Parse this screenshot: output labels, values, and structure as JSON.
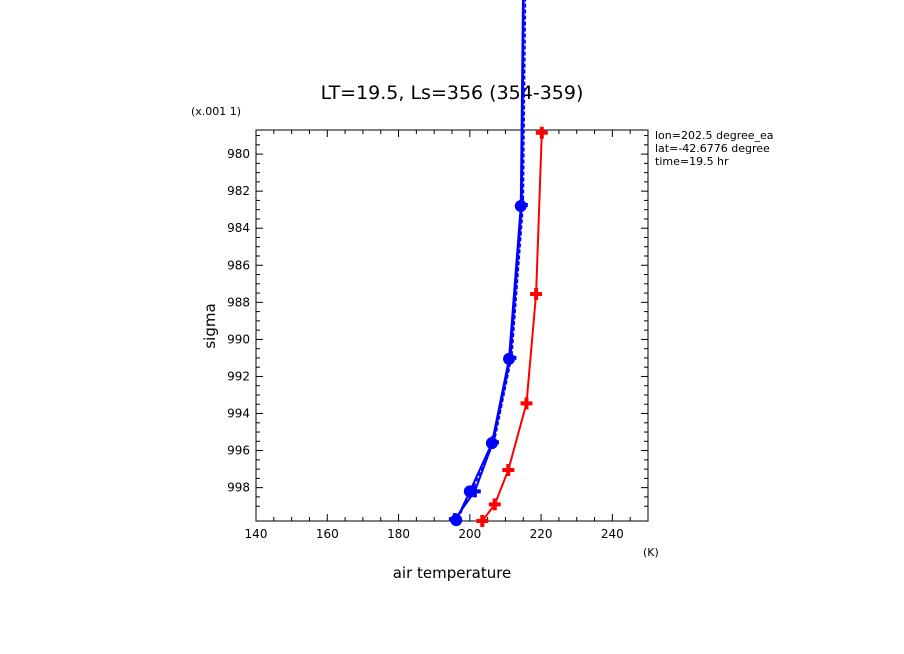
{
  "chart_data": {
    "type": "line",
    "title": "LT=19.5, Ls=356 (354-359)",
    "xlabel": "air temperature",
    "ylabel": "sigma",
    "x_unit": "(K)",
    "y_unit": "(x.001 1)",
    "xlim": [
      140,
      250
    ],
    "ylim": [
      978.7,
      999.8
    ],
    "y_inverted": true,
    "x_ticks": [
      140,
      160,
      180,
      200,
      220,
      240
    ],
    "y_ticks": [
      980,
      982,
      984,
      986,
      988,
      990,
      992,
      994,
      996,
      998
    ],
    "annotations": [
      "lon=202.5 degree_ea",
      "lat=-42.6776 degree",
      "time=19.5 hr"
    ],
    "series": [
      {
        "color": "#ff0000",
        "marker": "plus",
        "points": [
          [
            203.5,
            999.8
          ],
          [
            207.0,
            998.9
          ],
          [
            210.8,
            997.05
          ],
          [
            215.9,
            993.45
          ],
          [
            218.6,
            987.55
          ],
          [
            220.2,
            978.85
          ]
        ]
      },
      {
        "color": "#0000ff",
        "marker": "circle",
        "points": [
          [
            196.2,
            999.75
          ],
          [
            200.0,
            998.2
          ],
          [
            206.2,
            995.6
          ],
          [
            211.0,
            991.05
          ],
          [
            214.3,
            982.8
          ],
          [
            215.0,
            970.0
          ]
        ]
      },
      {
        "color": "#0000ff",
        "marker": "plus",
        "points": [
          [
            195.8,
            999.7
          ],
          [
            201.4,
            998.2
          ],
          [
            206.5,
            995.55
          ],
          [
            211.4,
            991.0
          ],
          [
            214.6,
            982.75
          ],
          [
            215.2,
            970.0
          ]
        ]
      },
      {
        "color": "#0000ff",
        "marker": "none",
        "dashed": true,
        "points": [
          [
            196.6,
            999.7
          ],
          [
            200.8,
            998.1
          ],
          [
            206.9,
            995.5
          ],
          [
            211.8,
            990.9
          ],
          [
            215.0,
            982.7
          ],
          [
            215.7,
            970.0
          ]
        ]
      }
    ]
  }
}
